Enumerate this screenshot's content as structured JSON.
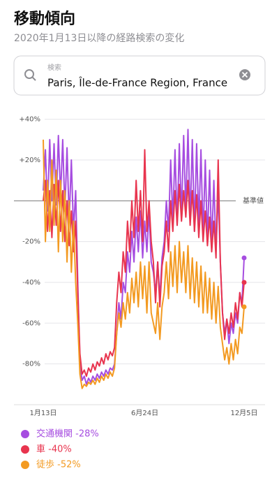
{
  "header": {
    "title": "移動傾向",
    "subtitle": "2020年1月13日以降の経路検索の変化"
  },
  "search": {
    "label": "検索",
    "value": "Paris, Île-de-France Region, France"
  },
  "chart_data": {
    "type": "line",
    "categories": [
      "1月13日",
      null,
      null,
      null,
      null,
      null,
      null,
      null,
      null,
      null,
      null,
      null,
      null,
      null,
      null,
      null,
      null,
      null,
      null,
      null,
      null,
      null,
      null,
      null,
      null,
      null,
      null,
      null,
      null,
      null,
      null,
      null,
      null,
      null,
      null,
      null,
      null,
      null,
      null,
      null,
      null,
      null,
      null,
      null,
      null,
      null,
      null,
      "6月24日",
      null,
      null,
      null,
      null,
      null,
      null,
      null,
      null,
      null,
      null,
      null,
      null,
      null,
      null,
      null,
      null,
      null,
      null,
      null,
      null,
      null,
      null,
      null,
      null,
      null,
      null,
      null,
      null,
      null,
      null,
      null,
      null,
      null,
      null,
      null,
      null,
      null,
      null,
      null,
      null,
      null,
      null,
      null,
      null,
      null,
      "12月5日"
    ],
    "series": [
      {
        "name": "交通機関 -28%",
        "color": "#a64de0",
        "values": [
          5,
          25,
          -5,
          30,
          0,
          28,
          -2,
          32,
          2,
          30,
          -5,
          26,
          -10,
          20,
          -15,
          5,
          -40,
          -80,
          -88,
          -86,
          -90,
          -87,
          -89,
          -86,
          -88,
          -85,
          -87,
          -84,
          -86,
          -83,
          -85,
          -82,
          -83,
          -80,
          -65,
          -50,
          -58,
          -40,
          -45,
          -25,
          -35,
          -15,
          -30,
          -8,
          -25,
          -5,
          -28,
          -10,
          -25,
          -5,
          -30,
          -35,
          -45,
          -30,
          -48,
          -28,
          -20,
          0,
          -15,
          20,
          -10,
          25,
          -12,
          28,
          -8,
          32,
          -5,
          35,
          -10,
          30,
          -15,
          28,
          -12,
          25,
          -18,
          20,
          -20,
          15,
          -22,
          10,
          -25,
          5,
          -30,
          -55,
          -65,
          -58,
          -70,
          -60,
          -65,
          -55,
          -60,
          -45,
          -50,
          -28
        ]
      },
      {
        "name": "車 -40%",
        "color": "#e8344e",
        "values": [
          0,
          10,
          -15,
          5,
          -18,
          8,
          -12,
          10,
          -15,
          5,
          -20,
          0,
          -22,
          -5,
          -25,
          -10,
          -45,
          -75,
          -85,
          -83,
          -86,
          -82,
          -84,
          -80,
          -83,
          -79,
          -81,
          -77,
          -80,
          -75,
          -78,
          -74,
          -76,
          -72,
          -50,
          -35,
          -45,
          -25,
          -35,
          -10,
          -25,
          0,
          -18,
          10,
          -15,
          5,
          -20,
          25,
          -15,
          0,
          -20,
          -30,
          -50,
          -30,
          -52,
          -32,
          -25,
          -10,
          -25,
          0,
          -15,
          5,
          -12,
          8,
          -10,
          5,
          -8,
          10,
          -12,
          5,
          -15,
          3,
          -18,
          0,
          -20,
          -5,
          -22,
          -8,
          -25,
          -10,
          -28,
          20,
          -30,
          -55,
          -68,
          -58,
          -65,
          -55,
          -62,
          -50,
          -58,
          -45,
          -52,
          -40
        ]
      },
      {
        "name": "徒歩 -52%",
        "color": "#f39a21",
        "values": [
          30,
          -20,
          10,
          -15,
          20,
          -12,
          15,
          -25,
          10,
          -20,
          5,
          -30,
          0,
          -35,
          -10,
          -40,
          -60,
          -85,
          -92,
          -90,
          -91,
          -89,
          -90,
          -88,
          -90,
          -87,
          -89,
          -86,
          -88,
          -85,
          -87,
          -84,
          -86,
          -82,
          -65,
          -55,
          -62,
          -50,
          -58,
          -45,
          -55,
          -38,
          -50,
          -35,
          -52,
          -30,
          -48,
          -32,
          -55,
          -30,
          -55,
          -60,
          -65,
          -50,
          -68,
          -52,
          -45,
          -30,
          -48,
          -25,
          -42,
          -22,
          -45,
          -20,
          -40,
          -25,
          -45,
          -22,
          -48,
          -28,
          -50,
          -30,
          -52,
          -32,
          -55,
          -35,
          -55,
          -38,
          -58,
          -40,
          -60,
          -42,
          -62,
          -70,
          -78,
          -72,
          -80,
          -70,
          -78,
          -68,
          -75,
          -62,
          -65,
          -52
        ]
      }
    ],
    "ylim": [
      -100,
      45
    ],
    "yticks": [
      {
        "value": 40,
        "label": "+40%"
      },
      {
        "value": 20,
        "label": "+20%"
      },
      {
        "value": 0,
        "label": "基準値"
      },
      {
        "value": -20,
        "label": "-20%"
      },
      {
        "value": -40,
        "label": "-40%"
      },
      {
        "value": -60,
        "label": "-60%"
      },
      {
        "value": -80,
        "label": "-80%"
      }
    ],
    "grid": true
  }
}
